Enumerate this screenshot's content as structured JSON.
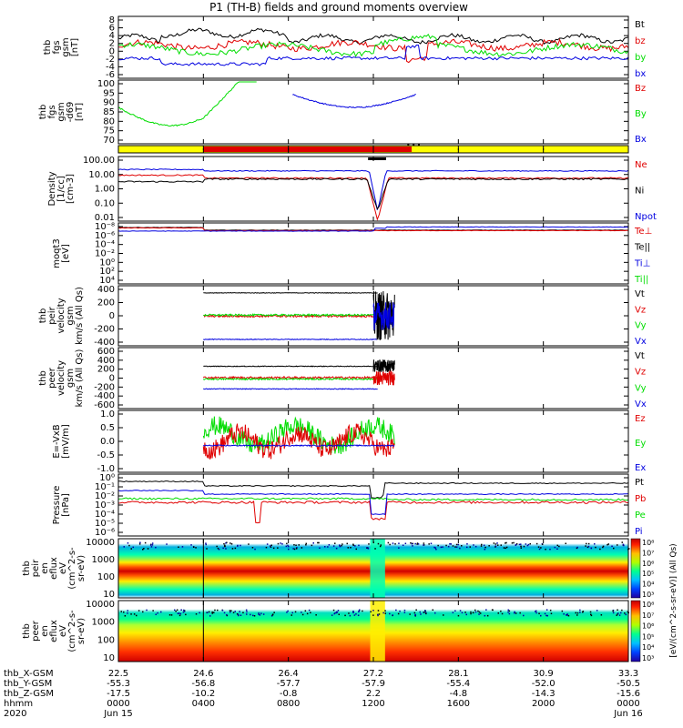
{
  "title": "P1 (TH-B) fields and ground moments overview",
  "colors": {
    "black": "#000000",
    "red": "#e00000",
    "green": "#00dd00",
    "blue": "#0000e0",
    "yellow": "#ffff00",
    "cyan": "#00c8c8"
  },
  "chart_data": {
    "type": "line",
    "xaxis": {
      "rows": [
        {
          "label": "thb_X-GSM",
          "values": [
            "22.5",
            "24.6",
            "26.4",
            "27.2",
            "28.1",
            "30.9",
            "33.3"
          ]
        },
        {
          "label": "thb_Y-GSM",
          "values": [
            "-55.3",
            "-56.8",
            "-57.7",
            "-57.9",
            "-55.4",
            "-52.0",
            "-50.5"
          ]
        },
        {
          "label": "thb_Z-GSM",
          "values": [
            "-17.5",
            "-10.2",
            "-0.8",
            "2.2",
            "-4.8",
            "-14.3",
            "-15.6"
          ]
        },
        {
          "label": "hhmm",
          "values": [
            "0000",
            "0400",
            "0800",
            "1200",
            "1600",
            "2000",
            "0000"
          ]
        },
        {
          "label": "2020",
          "values": [
            "Jun 15",
            "",
            "",
            "",
            "",
            "",
            "Jun 16"
          ]
        }
      ],
      "range_hours": [
        0,
        24
      ]
    },
    "panels": [
      {
        "id": "fgs-dsl",
        "ylabel": [
          "thb",
          "fgs",
          "gsm",
          "[nT]"
        ],
        "ylim": [
          -6,
          8
        ],
        "yticks": [
          "-6",
          "-4",
          "-2",
          "0",
          "2",
          "4",
          "6",
          "8"
        ],
        "legend": [
          {
            "name": "Bt",
            "color": "#000000"
          },
          {
            "name": "bz",
            "color": "#e00000"
          },
          {
            "name": "by",
            "color": "#00dd00"
          },
          {
            "name": "bx",
            "color": "#0000e0"
          }
        ]
      },
      {
        "id": "fgs-gsm",
        "ylabel": [
          "thb",
          "fgs",
          "gsm",
          "-d69",
          "[nT]"
        ],
        "ylim": [
          66,
          101
        ],
        "yticks": [
          "70",
          "75",
          "80",
          "85",
          "90",
          "95",
          "100"
        ],
        "legend": [
          {
            "name": "Bz",
            "color": "#e00000"
          },
          {
            "name": "By",
            "color": "#00dd00"
          },
          {
            "name": "Bx",
            "color": "#0000e0"
          }
        ]
      },
      {
        "id": "mode-bar",
        "ylabel": [],
        "legend": []
      },
      {
        "id": "density",
        "ylabel": [
          "Density",
          "[1/cc]",
          "[cm-3]"
        ],
        "log": true,
        "yticks": [
          "0.01",
          "0.10",
          "1.00",
          "10.00",
          "100.00"
        ],
        "legend": [
          {
            "name": "Ne",
            "color": "#e00000"
          },
          {
            "name": "Ni",
            "color": "#000000"
          },
          {
            "name": "Npot",
            "color": "#0000e0"
          }
        ]
      },
      {
        "id": "temperature",
        "ylabel": [
          "moqt3",
          "[eV]"
        ],
        "log": true,
        "yticks": [
          "10⁴",
          "10²",
          "10⁰",
          "10⁻²",
          "10⁻⁴",
          "10⁻⁶",
          "10⁻⁸"
        ],
        "legend": [
          {
            "name": "Te⊥",
            "color": "#e00000"
          },
          {
            "name": "Te||",
            "color": "#000000"
          },
          {
            "name": "Ti⊥",
            "color": "#0000e0"
          },
          {
            "name": "Ti||",
            "color": "#00dd00"
          }
        ]
      },
      {
        "id": "ion-velocity",
        "ylabel": [
          "thb",
          "peir",
          "velocity",
          "gsm",
          "km/s (All Qs)"
        ],
        "ylim": [
          -420,
          420
        ],
        "yticks": [
          "-400",
          "-200",
          "0",
          "200",
          "400"
        ],
        "legend": [
          {
            "name": "Vt",
            "color": "#000000"
          },
          {
            "name": "Vz",
            "color": "#e00000"
          },
          {
            "name": "Vy",
            "color": "#00dd00"
          },
          {
            "name": "Vx",
            "color": "#0000e0"
          }
        ]
      },
      {
        "id": "electron-velocity",
        "ylabel": [
          "thb",
          "peer",
          "velocity",
          "gsm",
          "km/s (All Qs)"
        ],
        "ylim": [
          -620,
          620
        ],
        "yticks": [
          "-600",
          "-400",
          "-200",
          "0",
          "200",
          "400",
          "600"
        ],
        "legend": [
          {
            "name": "Vt",
            "color": "#000000"
          },
          {
            "name": "Vz",
            "color": "#e00000"
          },
          {
            "name": "Vy",
            "color": "#00dd00"
          },
          {
            "name": "Vx",
            "color": "#0000e0"
          }
        ]
      },
      {
        "id": "efield",
        "ylabel": [
          "E=-VxB",
          "[mV/m]"
        ],
        "ylim": [
          -1.0,
          1.2
        ],
        "yticks": [
          "-1.0",
          "-0.5",
          "0.0",
          "0.5",
          "1.0"
        ],
        "legend": [
          {
            "name": "Ez",
            "color": "#e00000"
          },
          {
            "name": "Ey",
            "color": "#00dd00"
          },
          {
            "name": "Ex",
            "color": "#0000e0"
          }
        ]
      },
      {
        "id": "pressure",
        "ylabel": [
          "Pressure",
          "[nPa]"
        ],
        "log": true,
        "yticks": [
          "10⁻⁶",
          "10⁻⁵",
          "10⁻⁴",
          "10⁻³",
          "10⁻²",
          "10⁻¹",
          "10⁰"
        ],
        "legend": [
          {
            "name": "Pt",
            "color": "#000000"
          },
          {
            "name": "Pb",
            "color": "#e00000"
          },
          {
            "name": "Pe",
            "color": "#00dd00"
          },
          {
            "name": "Pi",
            "color": "#0000e0"
          }
        ]
      },
      {
        "id": "ion-spec",
        "ylabel": [
          "thb",
          "peir",
          "en",
          "eflux",
          "eV",
          "(cm^2-s-",
          "sr-eV)"
        ],
        "log": true,
        "yticks": [
          "10",
          "100",
          "1000",
          "10000"
        ],
        "legend": []
      },
      {
        "id": "electron-spec",
        "ylabel": [
          "thb",
          "peer",
          "en",
          "eflux",
          "eV",
          "(cm^2-s-",
          "sr-eV)"
        ],
        "log": true,
        "yticks": [
          "10",
          "100",
          "1000",
          "10000"
        ],
        "legend": []
      }
    ],
    "colorbar": {
      "label": "[eV/(cm^2-s-sr-eV)] (All Qs)",
      "ticks_ion": [
        "10⁸",
        "10⁷",
        "10⁶",
        "10⁵",
        "10⁴",
        "10³"
      ],
      "ticks_electron": [
        "10⁸",
        "10⁷",
        "10⁶",
        "10⁵",
        "10⁴",
        "10³"
      ]
    }
  }
}
